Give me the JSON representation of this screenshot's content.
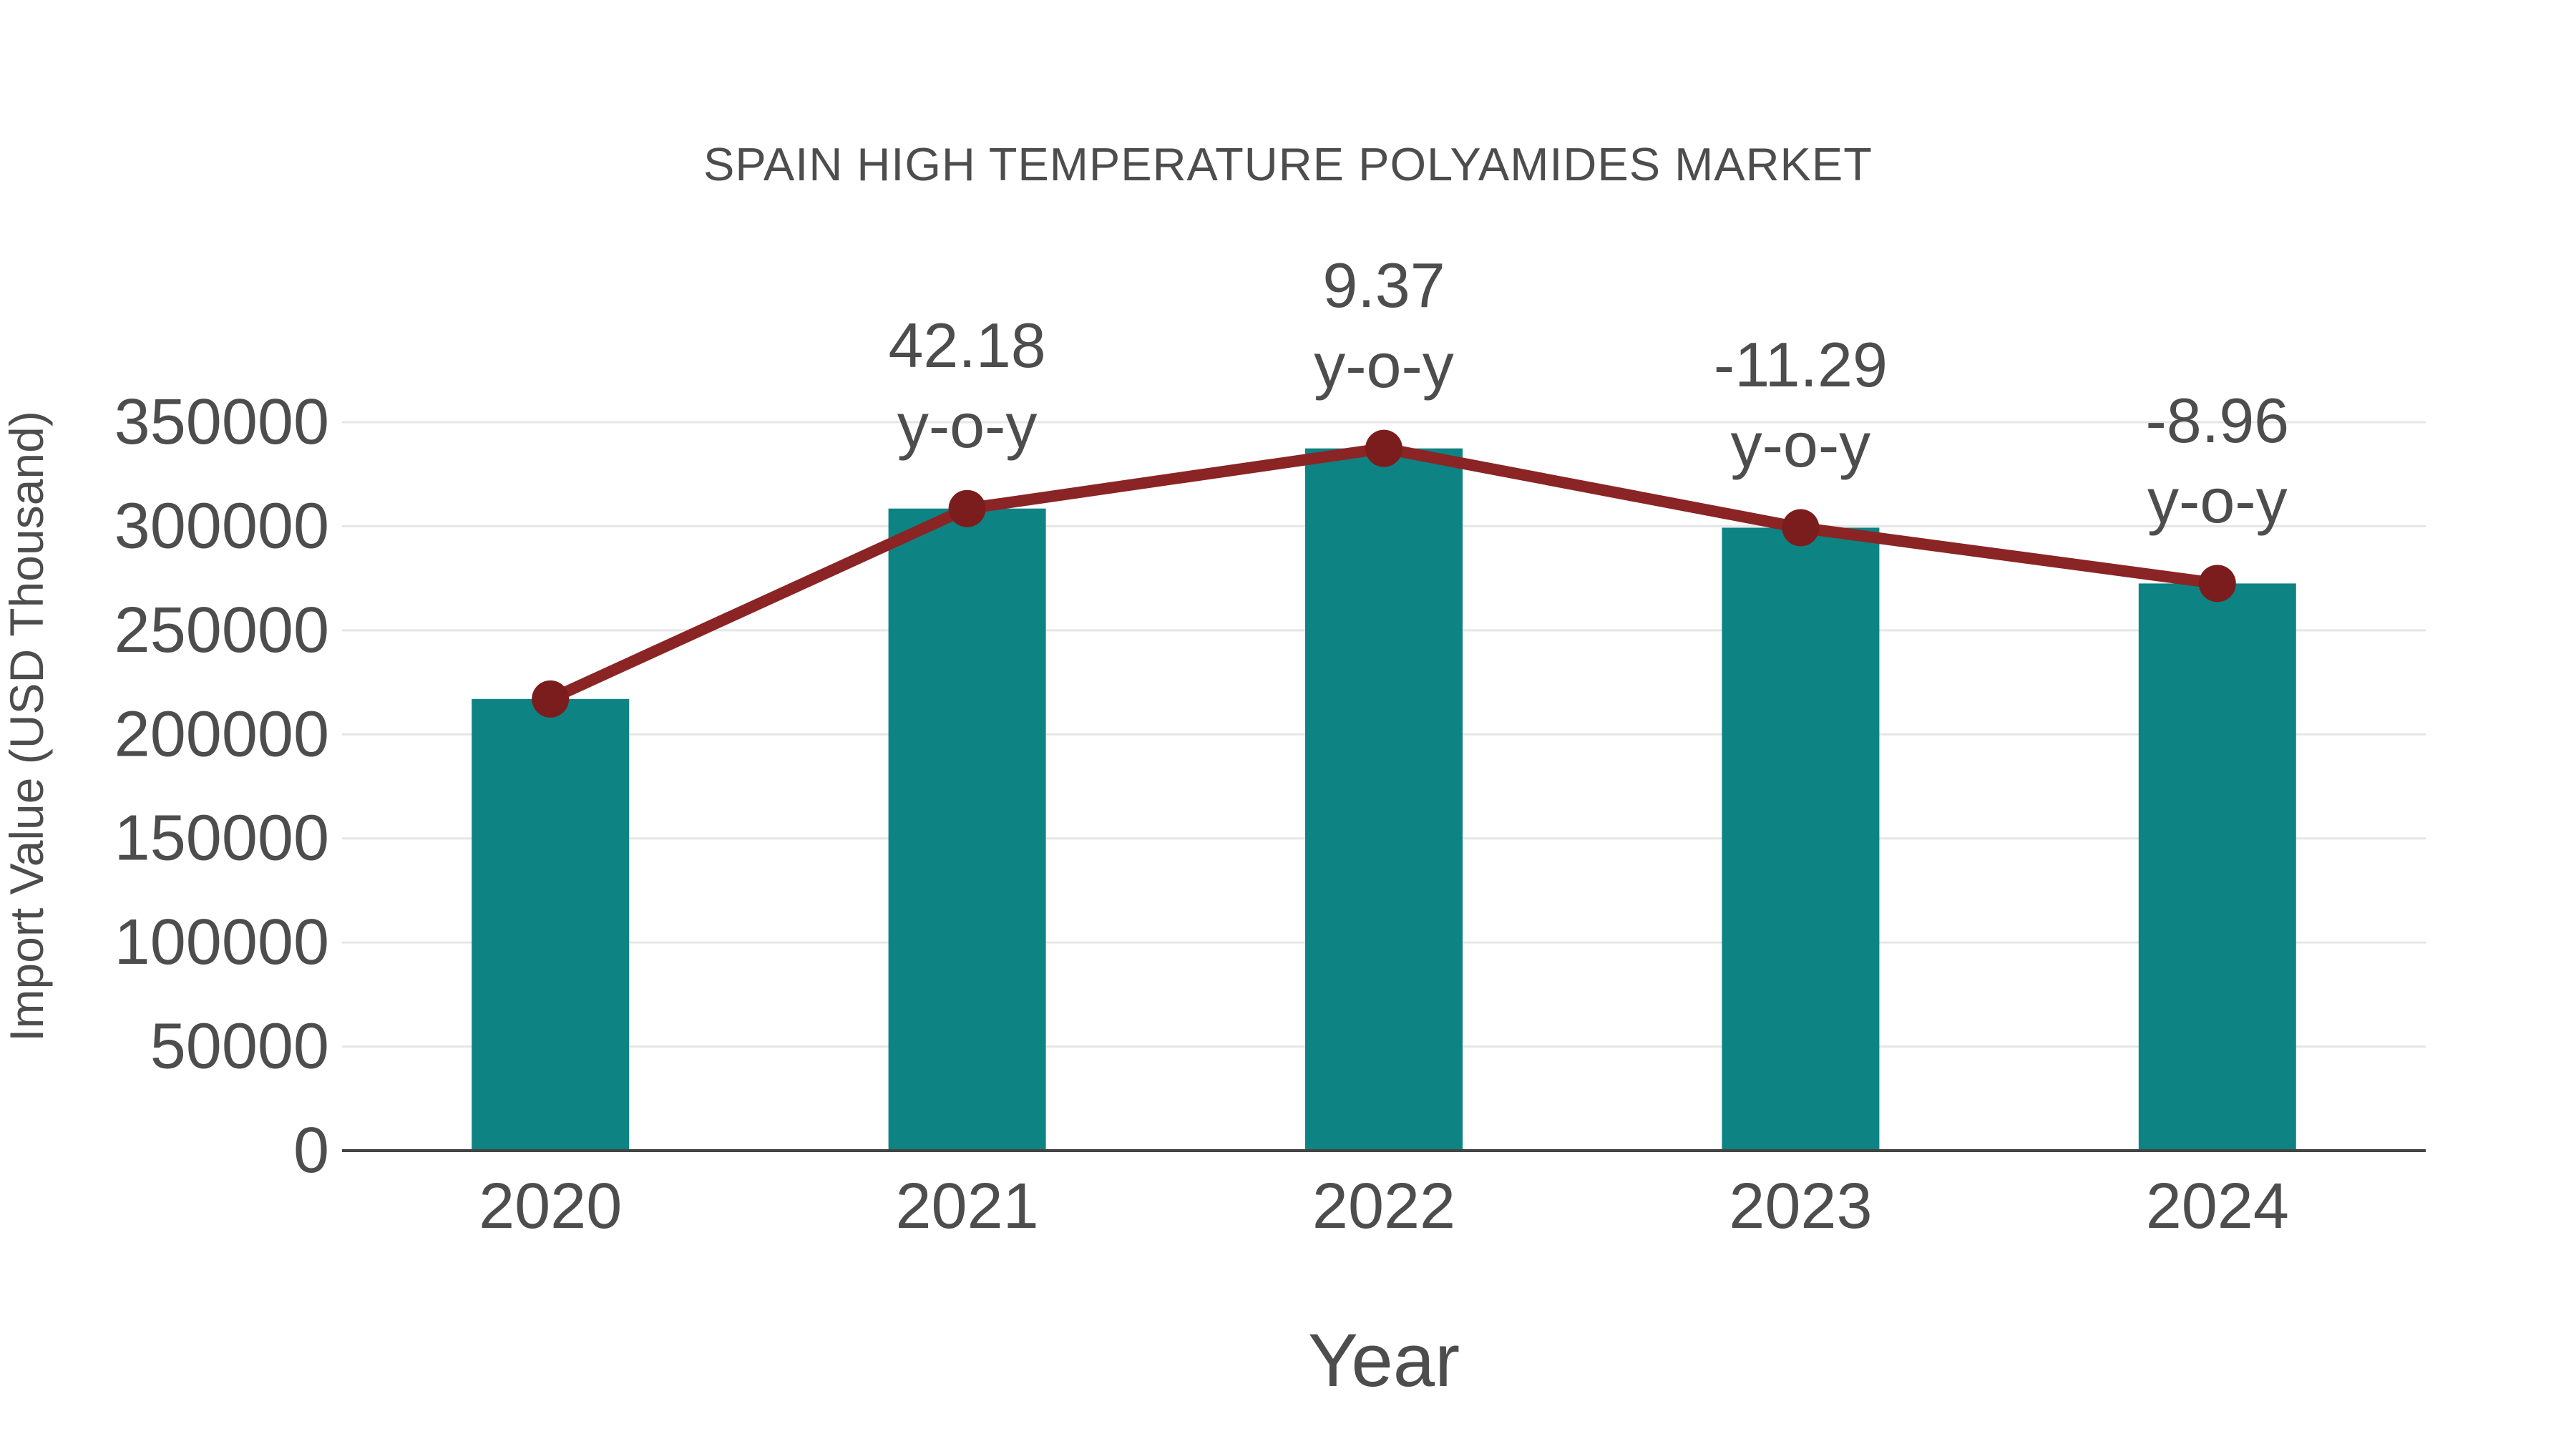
{
  "chart_data": {
    "type": "bar+line",
    "title": "SPAIN HIGH TEMPERATURE POLYAMIDES MARKET",
    "xlabel": "Year",
    "ylabel": "Import Value (USD Thousand)",
    "categories": [
      "2020",
      "2021",
      "2022",
      "2023",
      "2024"
    ],
    "series": [
      {
        "name": "Import Value bars",
        "type": "bar",
        "values": [
          217000,
          308500,
          337400,
          299300,
          272500
        ]
      },
      {
        "name": "Import Value line",
        "type": "line",
        "values": [
          217000,
          308500,
          337400,
          299300,
          272500
        ]
      }
    ],
    "annotations": [
      {
        "category": "2021",
        "value_label": "42.18",
        "suffix": "y-o-y"
      },
      {
        "category": "2022",
        "value_label": "9.37",
        "suffix": "y-o-y"
      },
      {
        "category": "2023",
        "value_label": "-11.29",
        "suffix": "y-o-y"
      },
      {
        "category": "2024",
        "value_label": "-8.96",
        "suffix": "y-o-y"
      }
    ],
    "y_ticks": [
      0,
      50000,
      100000,
      150000,
      200000,
      250000,
      300000,
      350000
    ],
    "ylim": [
      0,
      350000
    ],
    "grid": true,
    "legend": false,
    "colors": {
      "bar": "#0e8383",
      "line": "#8b2424",
      "marker": "#7b1d1d",
      "text": "#4d4d4d",
      "grid": "#e6e6e6",
      "axis": "#444444",
      "background": "#ffffff"
    }
  }
}
